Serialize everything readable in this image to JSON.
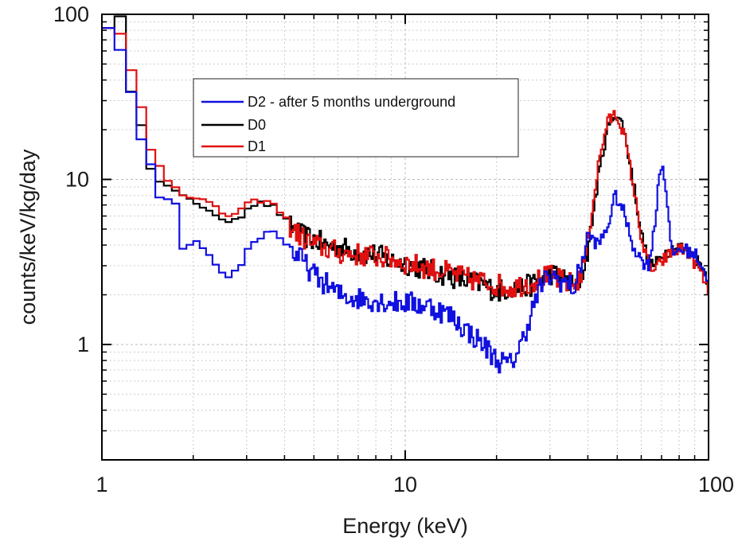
{
  "chart_data": {
    "type": "line",
    "title": "",
    "xlabel": "Energy (keV)",
    "ylabel": "counts/keV/kg/day",
    "xscale": "log",
    "yscale": "log",
    "xlim": [
      1,
      100
    ],
    "ylim": [
      0.2,
      100
    ],
    "x_ticks": [
      {
        "value": 1,
        "label": "1"
      },
      {
        "value": 10,
        "label": "10"
      },
      {
        "value": 100,
        "label": "100"
      }
    ],
    "y_ticks": [
      {
        "value": 1,
        "label": "1"
      },
      {
        "value": 10,
        "label": "10"
      },
      {
        "value": 100,
        "label": "100"
      }
    ],
    "grid": true,
    "legend_position": "top-left inside",
    "series": [
      {
        "name": "D2 - after 5 months underground",
        "color": "#1010e0",
        "x": [
          1.0,
          1.1,
          1.2,
          1.3,
          1.4,
          1.5,
          1.6,
          1.7,
          1.75,
          1.8,
          2.0,
          2.2,
          2.4,
          2.6,
          2.8,
          3.0,
          3.3,
          3.6,
          4.0,
          4.5,
          5.0,
          5.5,
          6.0,
          7.0,
          8.0,
          9.0,
          10.0,
          12.0,
          14.0,
          16.0,
          18.0,
          20.0,
          22.0,
          24.0,
          26.0,
          28.0,
          30.0,
          33.0,
          36.0,
          40.0,
          43.0,
          46.0,
          49.0,
          52.0,
          56.0,
          60.0,
          63.0,
          66.0,
          68.0,
          70.0,
          72.0,
          75.0,
          80.0,
          85.0,
          90.0,
          95.0,
          100.0
        ],
        "y": [
          85,
          60,
          33,
          17,
          12,
          8,
          7.5,
          7,
          3.8,
          3.8,
          4.1,
          3.4,
          2.7,
          2.6,
          3.0,
          4.0,
          4.6,
          4.9,
          4.0,
          3.3,
          2.6,
          2.3,
          2.0,
          1.9,
          1.85,
          1.8,
          1.8,
          1.7,
          1.5,
          1.2,
          1.0,
          0.8,
          0.75,
          1.0,
          1.6,
          2.3,
          2.6,
          2.4,
          2.2,
          4.6,
          4.0,
          5.0,
          8.0,
          6.5,
          4.0,
          3.2,
          3.0,
          5.0,
          10.0,
          12.5,
          9.0,
          3.5,
          3.8,
          3.7,
          3.5,
          3.0,
          2.2
        ]
      },
      {
        "name": "D0",
        "color": "#000000",
        "x": [
          1.0,
          1.1,
          1.2,
          1.3,
          1.4,
          1.5,
          1.6,
          1.7,
          1.8,
          2.0,
          2.2,
          2.4,
          2.6,
          2.8,
          3.0,
          3.3,
          3.6,
          4.0,
          4.5,
          5.0,
          5.5,
          6.0,
          7.0,
          8.0,
          9.0,
          10.0,
          12.0,
          14.0,
          16.0,
          18.0,
          20.0,
          22.0,
          24.0,
          26.0,
          28.0,
          30.0,
          33.0,
          36.0,
          38.0,
          40.0,
          43.0,
          46.0,
          49.0,
          52.0,
          56.0,
          60.0,
          63.0,
          66.0,
          70.0,
          75.0,
          80.0,
          85.0,
          90.0,
          95.0,
          100.0
        ],
        "y": [
          85,
          95,
          33,
          22,
          12,
          10,
          9,
          8.5,
          7.8,
          7.2,
          6.6,
          5.5,
          5.7,
          6.0,
          7.0,
          7.2,
          6.8,
          5.5,
          4.6,
          4.3,
          4.0,
          3.9,
          3.6,
          3.5,
          3.2,
          3.1,
          2.8,
          2.6,
          2.4,
          2.3,
          2.1,
          2.2,
          2.2,
          2.3,
          2.5,
          2.7,
          2.5,
          2.2,
          2.6,
          4.0,
          10.0,
          20.0,
          25.5,
          21.0,
          10.0,
          4.5,
          3.2,
          3.0,
          3.5,
          3.8,
          3.9,
          3.7,
          3.3,
          3.0,
          2.3
        ]
      },
      {
        "name": "D1",
        "color": "#e01010",
        "x": [
          1.0,
          1.1,
          1.2,
          1.3,
          1.4,
          1.5,
          1.6,
          1.7,
          1.8,
          2.0,
          2.2,
          2.4,
          2.6,
          2.8,
          3.0,
          3.3,
          3.6,
          4.0,
          4.5,
          5.0,
          5.5,
          6.0,
          7.0,
          8.0,
          9.0,
          10.0,
          12.0,
          14.0,
          16.0,
          18.0,
          20.0,
          22.0,
          24.0,
          26.0,
          28.0,
          30.0,
          33.0,
          36.0,
          38.0,
          40.0,
          43.0,
          46.0,
          49.0,
          52.0,
          56.0,
          60.0,
          63.0,
          66.0,
          70.0,
          75.0,
          80.0,
          85.0,
          90.0,
          95.0,
          100.0
        ],
        "y": [
          85,
          75,
          45,
          27,
          15,
          12,
          10,
          9.0,
          8.2,
          7.8,
          7.2,
          6.3,
          6.0,
          6.5,
          7.2,
          7.5,
          7.0,
          5.6,
          4.5,
          4.0,
          3.8,
          3.6,
          3.5,
          3.4,
          3.3,
          3.1,
          2.9,
          2.7,
          2.5,
          2.4,
          2.3,
          2.2,
          2.3,
          2.4,
          2.5,
          2.6,
          2.4,
          2.3,
          2.7,
          4.5,
          12.0,
          22.0,
          25.0,
          20.0,
          9.5,
          4.2,
          3.0,
          2.8,
          3.2,
          3.6,
          3.8,
          3.6,
          3.1,
          2.6,
          2.0
        ]
      }
    ]
  }
}
